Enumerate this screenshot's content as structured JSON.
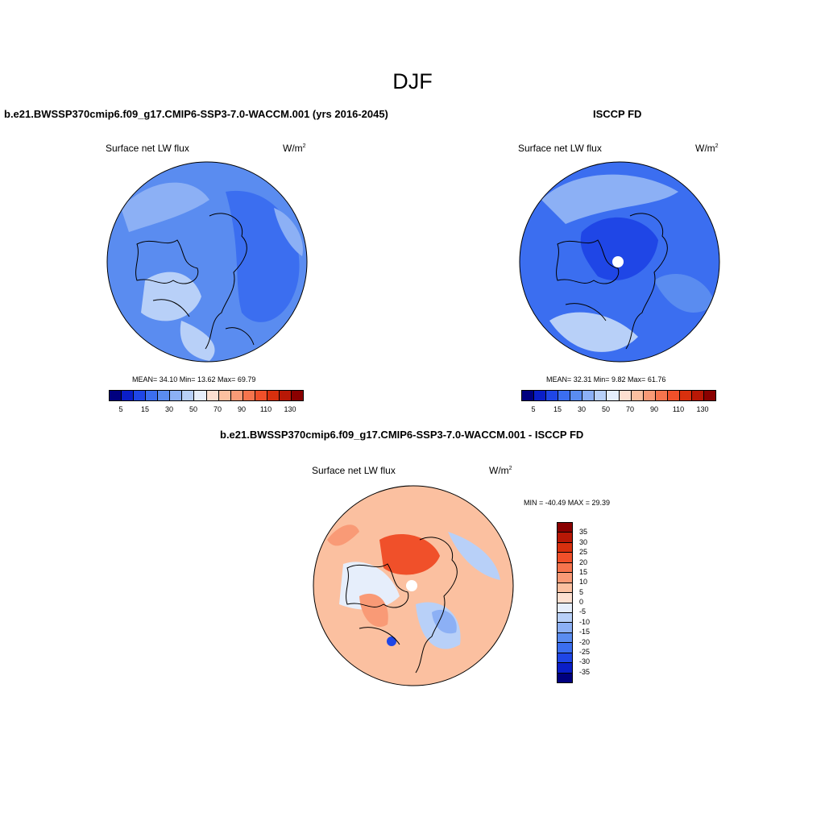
{
  "title": "DJF",
  "panels": [
    {
      "title": "b.e21.BWSSP370cmip6.f09_g17.CMIP6-SSP3-7.0-WACCM.001 (yrs 2016-2045)",
      "variable": "Surface net LW flux",
      "units": "W/m",
      "units_sup": "2",
      "stats": "MEAN=  34.10  Min=  13.62  Max=  69.79"
    },
    {
      "title": "ISCCP FD",
      "variable": "Surface net LW flux",
      "units": "W/m",
      "units_sup": "2",
      "stats": "MEAN=  32.31  Min=   9.82  Max=  61.76"
    },
    {
      "title": "b.e21.BWSSP370cmip6.f09_g17.CMIP6-SSP3-7.0-WACCM.001 - ISCCP FD",
      "variable": "Surface net LW flux",
      "units": "W/m",
      "units_sup": "2",
      "stats": "MIN = -40.49 MAX =  29.39"
    }
  ],
  "colorbar_abs": {
    "colors": [
      "#00007f",
      "#0a1ec8",
      "#1f46e6",
      "#3b6ef0",
      "#5a8cf0",
      "#8cb0f5",
      "#b8d0f8",
      "#e6eefb",
      "#fde0d0",
      "#fbc0a0",
      "#f99a76",
      "#f6744d",
      "#f0502a",
      "#d8300e",
      "#b81806",
      "#8a0000"
    ],
    "labels": [
      "5",
      "15",
      "30",
      "50",
      "70",
      "90",
      "110",
      "130"
    ]
  },
  "colorbar_diff": {
    "colors": [
      "#8a0000",
      "#b81806",
      "#d8300e",
      "#f0502a",
      "#f6744d",
      "#f99a76",
      "#fbc0a0",
      "#fde0d0",
      "#e6eefb",
      "#b8d0f8",
      "#8cb0f5",
      "#5a8cf0",
      "#3b6ef0",
      "#1f46e6",
      "#0a1ec8",
      "#00007f"
    ],
    "labels": [
      "35",
      "30",
      "25",
      "20",
      "15",
      "10",
      "5",
      "0",
      "-5",
      "-10",
      "-15",
      "-20",
      "-25",
      "-30",
      "-35"
    ]
  },
  "map_colors": {
    "light_blue": "#b8d0f8",
    "mid_blue": "#8cb0f5",
    "blue": "#5a8cf0",
    "strong_blue": "#3b6ef0",
    "deep_blue": "#1f46e6",
    "light_red": "#fbc0a0",
    "red": "#f99a76",
    "strong_red": "#f0502a",
    "near_zero": "#e6eefb"
  }
}
